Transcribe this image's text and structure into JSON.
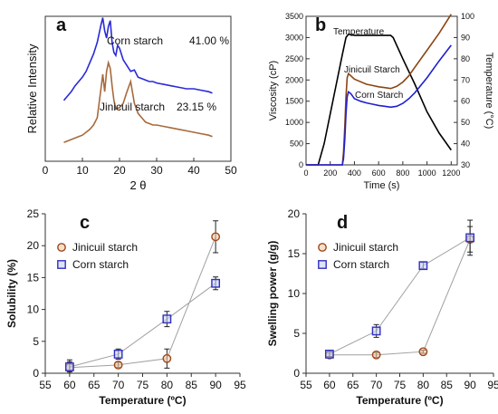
{
  "chart_data": [
    {
      "panel": "a",
      "type": "line",
      "xlabel": "2 θ",
      "ylabel": "Relative Intensity",
      "xlim": [
        0,
        50
      ],
      "xticks": [
        0,
        10,
        20,
        30,
        40,
        50
      ],
      "yticks": [],
      "series": [
        {
          "name": "Corn starch",
          "annotation": "41.00 %",
          "color": "#2a2ad8",
          "x": [
            5,
            6,
            7,
            8,
            9,
            10,
            11,
            12,
            13,
            14,
            15,
            15.5,
            16,
            16.5,
            17,
            17.5,
            18,
            18.5,
            19,
            19.5,
            20,
            21,
            22,
            23,
            24,
            25,
            26,
            27,
            28,
            29,
            30,
            32,
            34,
            36,
            38,
            40,
            42,
            44,
            45
          ],
          "y": [
            0.42,
            0.45,
            0.48,
            0.52,
            0.55,
            0.58,
            0.62,
            0.68,
            0.74,
            0.82,
            0.94,
            0.99,
            0.9,
            0.85,
            0.93,
            0.97,
            0.82,
            0.75,
            0.73,
            0.8,
            0.78,
            0.7,
            0.66,
            0.62,
            0.63,
            0.58,
            0.57,
            0.56,
            0.55,
            0.55,
            0.54,
            0.53,
            0.52,
            0.51,
            0.5,
            0.5,
            0.49,
            0.48,
            0.47
          ]
        },
        {
          "name": "Jinicuil starch",
          "annotation": "23.15 %",
          "color": "#a86a3c",
          "x": [
            5,
            6,
            7,
            8,
            9,
            10,
            11,
            12,
            13,
            14,
            15,
            15.5,
            16,
            16.5,
            17,
            17.5,
            18,
            18.5,
            19,
            20,
            21,
            22,
            23,
            24,
            25,
            26,
            27,
            28,
            29,
            30,
            32,
            34,
            36,
            38,
            40,
            42,
            44,
            45
          ],
          "y": [
            0.13,
            0.14,
            0.15,
            0.16,
            0.17,
            0.18,
            0.2,
            0.22,
            0.25,
            0.3,
            0.5,
            0.6,
            0.48,
            0.62,
            0.68,
            0.64,
            0.52,
            0.42,
            0.36,
            0.37,
            0.4,
            0.48,
            0.55,
            0.4,
            0.33,
            0.3,
            0.27,
            0.26,
            0.25,
            0.25,
            0.24,
            0.23,
            0.22,
            0.21,
            0.2,
            0.19,
            0.18,
            0.17
          ]
        }
      ]
    },
    {
      "panel": "b",
      "type": "line",
      "xlabel": "Time (s)",
      "ylabel": "Viscosity (cP)",
      "y2label": "Temperature (°C)",
      "xlim": [
        0,
        1250
      ],
      "ylim": [
        0,
        3500
      ],
      "y2lim": [
        30,
        100
      ],
      "xticks": [
        0,
        200,
        400,
        600,
        800,
        1000,
        1200
      ],
      "yticks": [
        0,
        500,
        1000,
        1500,
        2000,
        2500,
        3000,
        3500
      ],
      "y2ticks": [
        30,
        40,
        50,
        60,
        70,
        80,
        90,
        100
      ],
      "series": [
        {
          "name": "Temperature",
          "axis": "right",
          "color": "#000000",
          "x": [
            0,
            50,
            100,
            150,
            200,
            250,
            300,
            330,
            350,
            400,
            500,
            600,
            700,
            720,
            800,
            900,
            1000,
            1100,
            1200
          ],
          "y": [
            30,
            30,
            30,
            40,
            54,
            68,
            82,
            90,
            91.5,
            91,
            91,
            91,
            91,
            90,
            80,
            68,
            55,
            45,
            37
          ]
        },
        {
          "name": "Jinicuil Starch",
          "axis": "left",
          "color": "#8b4513",
          "x": [
            0,
            300,
            310,
            320,
            330,
            340,
            350,
            370,
            400,
            450,
            500,
            550,
            600,
            650,
            700,
            750,
            800,
            850,
            900,
            1000,
            1100,
            1200
          ],
          "y": [
            0,
            0,
            300,
            900,
            1600,
            2050,
            2150,
            2100,
            2020,
            1960,
            1900,
            1870,
            1840,
            1820,
            1800,
            1850,
            1950,
            2100,
            2300,
            2700,
            3100,
            3550
          ]
        },
        {
          "name": "Corn Starch",
          "axis": "left",
          "color": "#2020d0",
          "x": [
            0,
            300,
            310,
            320,
            330,
            340,
            350,
            370,
            400,
            450,
            500,
            550,
            600,
            650,
            700,
            750,
            800,
            850,
            900,
            1000,
            1100,
            1200
          ],
          "y": [
            0,
            0,
            150,
            600,
            1200,
            1600,
            1720,
            1680,
            1560,
            1500,
            1460,
            1430,
            1400,
            1380,
            1360,
            1380,
            1450,
            1560,
            1700,
            2050,
            2450,
            2820
          ]
        }
      ]
    },
    {
      "panel": "c",
      "type": "scatter",
      "xlabel": "Temperature (ºC)",
      "ylabel": "Solubility (%)",
      "xlim": [
        55,
        95
      ],
      "ylim": [
        0,
        25
      ],
      "xticks": [
        55,
        60,
        65,
        70,
        75,
        80,
        85,
        90,
        95
      ],
      "yticks": [
        0,
        5,
        10,
        15,
        20,
        25
      ],
      "series": [
        {
          "name": "Jinicuil starch",
          "marker": "circle",
          "color": "#9c4a1a",
          "x": [
            60,
            70,
            80,
            90
          ],
          "y": [
            0.9,
            1.3,
            2.3,
            21.4
          ],
          "err": [
            1.2,
            0.4,
            1.5,
            2.5
          ]
        },
        {
          "name": "Corn starch",
          "marker": "square",
          "color": "#3030c0",
          "x": [
            60,
            70,
            80,
            90
          ],
          "y": [
            1.0,
            3.0,
            8.5,
            14.1
          ],
          "err": [
            0.8,
            0.8,
            1.2,
            1.0
          ]
        }
      ]
    },
    {
      "panel": "d",
      "type": "scatter",
      "xlabel": "Temperature (ºC)",
      "ylabel": "Swelling power (g/g)",
      "xlim": [
        55,
        95
      ],
      "ylim": [
        0,
        20
      ],
      "xticks": [
        55,
        60,
        65,
        70,
        75,
        80,
        85,
        90,
        95
      ],
      "yticks": [
        0,
        5,
        10,
        15,
        20
      ],
      "series": [
        {
          "name": "Jinicuil starch",
          "marker": "circle",
          "color": "#9c4a1a",
          "x": [
            60,
            70,
            80,
            90
          ],
          "y": [
            2.3,
            2.3,
            2.7,
            16.8
          ],
          "err": [
            0.2,
            0.3,
            0.2,
            1.6
          ]
        },
        {
          "name": "Corn starch",
          "marker": "square",
          "color": "#3030c0",
          "x": [
            60,
            70,
            80,
            90
          ],
          "y": [
            2.4,
            5.3,
            13.5,
            17.0
          ],
          "err": [
            0.3,
            0.8,
            0.4,
            2.2
          ]
        }
      ]
    }
  ]
}
